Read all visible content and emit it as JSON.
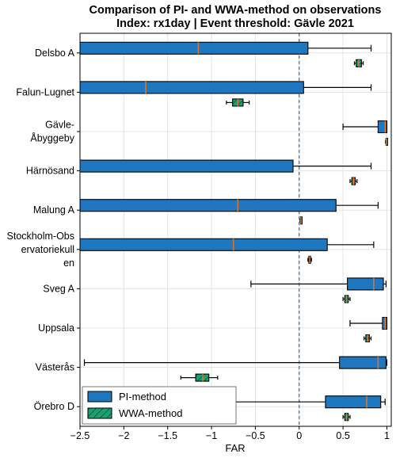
{
  "chart_data": {
    "type": "boxplot",
    "title": "Comparison of PI- and WWA-method on observations",
    "subtitle": "Index: rx1day | Event threshold: Gävle 2021",
    "xlabel": "FAR",
    "xlim": [
      -2.5,
      1.05
    ],
    "xticks": [
      -2.5,
      -2,
      -1.5,
      -1,
      -0.5,
      0,
      0.5,
      1
    ],
    "xtick_labels": [
      "−2.5",
      "−2",
      "−1.5",
      "−1",
      "−0.5",
      "0",
      "0.5",
      "1"
    ],
    "reference_line_x": 0,
    "grid": true,
    "legend_position": "bottom-left",
    "colors": {
      "pi": "#1f77c0",
      "wwa": "#1aa070",
      "median": "#d9732a",
      "refline": "#2c6fa6"
    },
    "series": [
      {
        "key": "pi",
        "name": "PI-method"
      },
      {
        "key": "wwa",
        "name": "WWA-method"
      }
    ],
    "categories": [
      {
        "label_lines": [
          "Delsbo A"
        ],
        "pi": {
          "whisker_low": -2.5,
          "q1": -2.5,
          "median": -1.15,
          "q3": 0.1,
          "whisker_high": 0.82
        },
        "wwa": {
          "whisker_low": 0.63,
          "q1": 0.65,
          "median": 0.68,
          "q3": 0.71,
          "whisker_high": 0.73
        }
      },
      {
        "label_lines": [
          "Falun-Lugnet"
        ],
        "pi": {
          "whisker_low": -2.5,
          "q1": -2.5,
          "median": -1.75,
          "q3": 0.05,
          "whisker_high": 0.82
        },
        "wwa": {
          "whisker_low": -0.83,
          "q1": -0.76,
          "median": -0.7,
          "q3": -0.64,
          "whisker_high": -0.57
        }
      },
      {
        "label_lines": [
          "Gävle-",
          "Åbyggeby"
        ],
        "pi": {
          "whisker_low": 0.5,
          "q1": 0.9,
          "median": 0.98,
          "q3": 1.0,
          "whisker_high": 1.0
        },
        "wwa": {
          "whisker_low": 0.985,
          "q1": 0.99,
          "median": 0.995,
          "q3": 1.0,
          "whisker_high": 1.0
        }
      },
      {
        "label_lines": [
          "Härnösand"
        ],
        "pi": {
          "whisker_low": -2.5,
          "q1": -2.5,
          "median": -2.5,
          "q3": -0.07,
          "whisker_high": 0.82
        },
        "wwa": {
          "whisker_low": 0.58,
          "q1": 0.6,
          "median": 0.62,
          "q3": 0.64,
          "whisker_high": 0.66
        }
      },
      {
        "label_lines": [
          "Malung A"
        ],
        "pi": {
          "whisker_low": -2.5,
          "q1": -2.5,
          "median": -0.7,
          "q3": 0.42,
          "whisker_high": 0.9
        },
        "wwa": {
          "whisker_low": 0.01,
          "q1": 0.015,
          "median": 0.02,
          "q3": 0.025,
          "whisker_high": 0.03
        }
      },
      {
        "label_lines": [
          "Stockholm-Obs",
          "ervatoriekull",
          "en"
        ],
        "pi": {
          "whisker_low": -2.5,
          "q1": -2.5,
          "median": -0.75,
          "q3": 0.32,
          "whisker_high": 0.85
        },
        "wwa": {
          "whisker_low": 0.1,
          "q1": 0.11,
          "median": 0.12,
          "q3": 0.13,
          "whisker_high": 0.14
        }
      },
      {
        "label_lines": [
          "Sveg A"
        ],
        "pi": {
          "whisker_low": -0.55,
          "q1": 0.55,
          "median": 0.85,
          "q3": 0.96,
          "whisker_high": 0.99
        },
        "wwa": {
          "whisker_low": 0.5,
          "q1": 0.52,
          "median": 0.54,
          "q3": 0.56,
          "whisker_high": 0.58
        }
      },
      {
        "label_lines": [
          "Uppsala"
        ],
        "pi": {
          "whisker_low": 0.58,
          "q1": 0.95,
          "median": 0.98,
          "q3": 1.0,
          "whisker_high": 1.0
        },
        "wwa": {
          "whisker_low": 0.74,
          "q1": 0.76,
          "median": 0.78,
          "q3": 0.8,
          "whisker_high": 0.82
        }
      },
      {
        "label_lines": [
          "Västerås"
        ],
        "pi": {
          "whisker_low": -2.45,
          "q1": 0.46,
          "median": 0.9,
          "q3": 0.99,
          "whisker_high": 1.0
        },
        "wwa": {
          "whisker_low": -1.35,
          "q1": -1.18,
          "median": -1.1,
          "q3": -1.03,
          "whisker_high": -0.93
        }
      },
      {
        "label_lines": [
          "Örebro D"
        ],
        "pi": {
          "whisker_low": -1.3,
          "q1": 0.3,
          "median": 0.77,
          "q3": 0.93,
          "whisker_high": 0.98
        },
        "wwa": {
          "whisker_low": 0.5,
          "q1": 0.52,
          "median": 0.54,
          "q3": 0.56,
          "whisker_high": 0.58
        }
      }
    ]
  }
}
